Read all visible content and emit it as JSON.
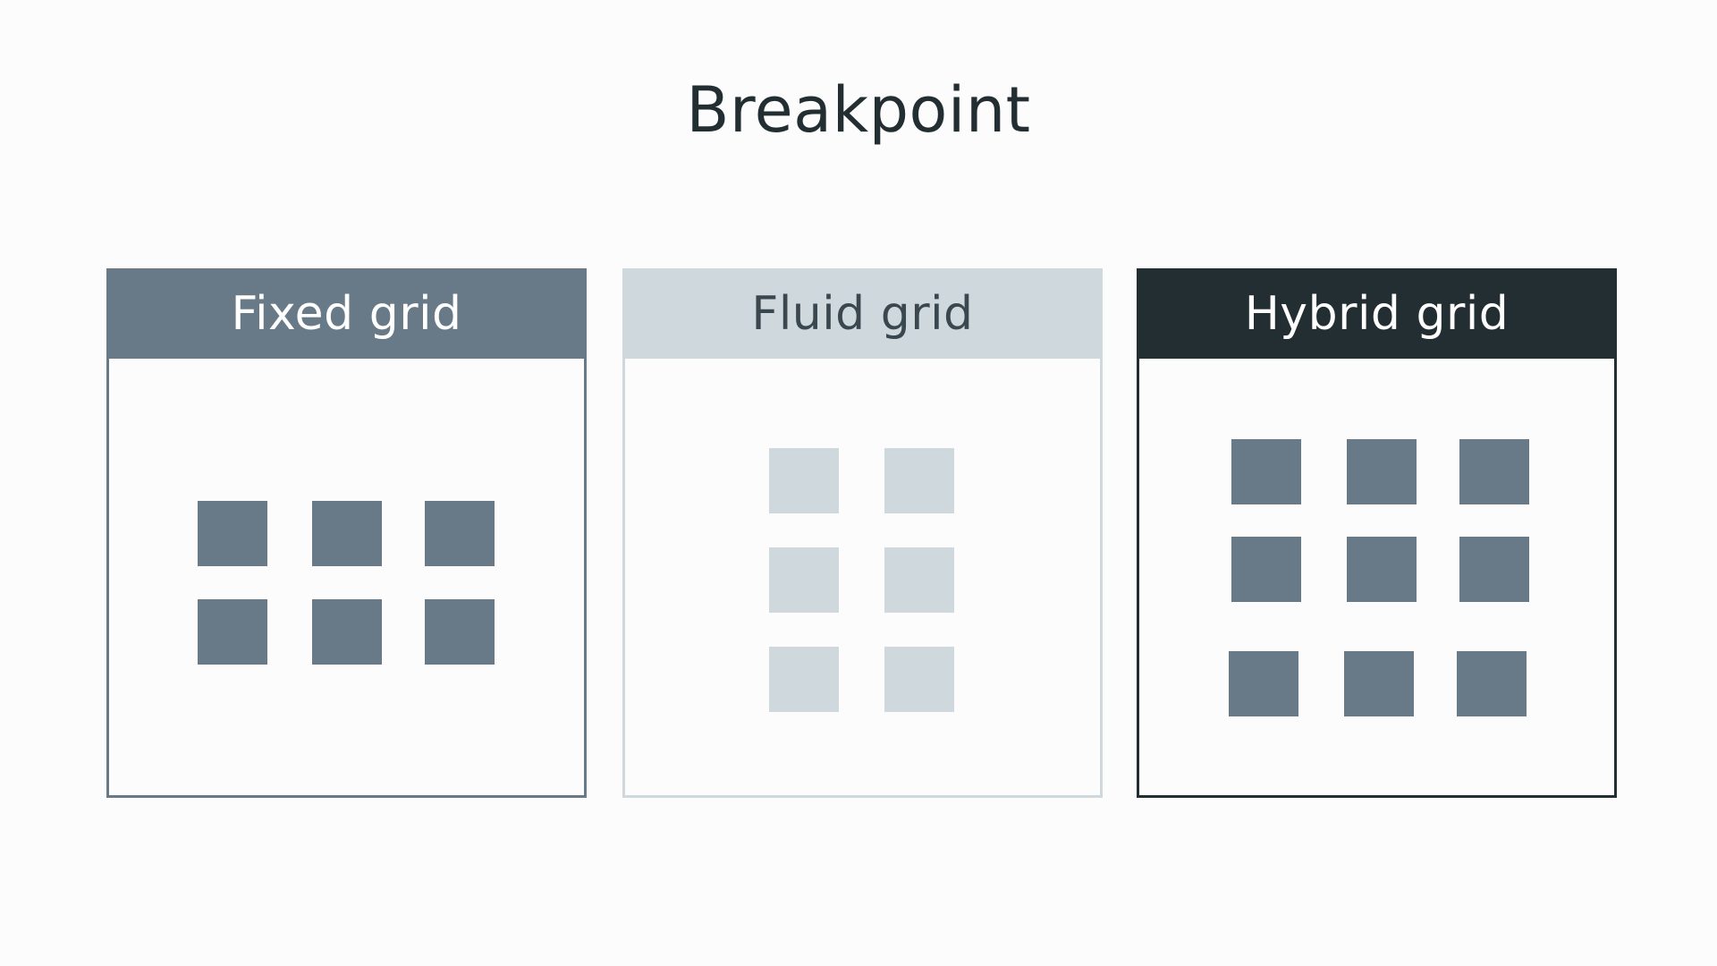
{
  "title": "Breakpoint",
  "colors": {
    "background": "#fcfcfc",
    "title_text": "#232e33",
    "fixed": "#687987",
    "fluid": "#cfd8dc",
    "hybrid_header": "#232e33",
    "hybrid_tile": "#687987"
  },
  "panels": [
    {
      "label": "Fixed grid",
      "tiles": "3 columns x 2 rows"
    },
    {
      "label": "Fluid grid",
      "tiles": "2 columns x 3 rows"
    },
    {
      "label": "Hybrid grid",
      "tiles": "3 columns x 3 rows"
    }
  ]
}
